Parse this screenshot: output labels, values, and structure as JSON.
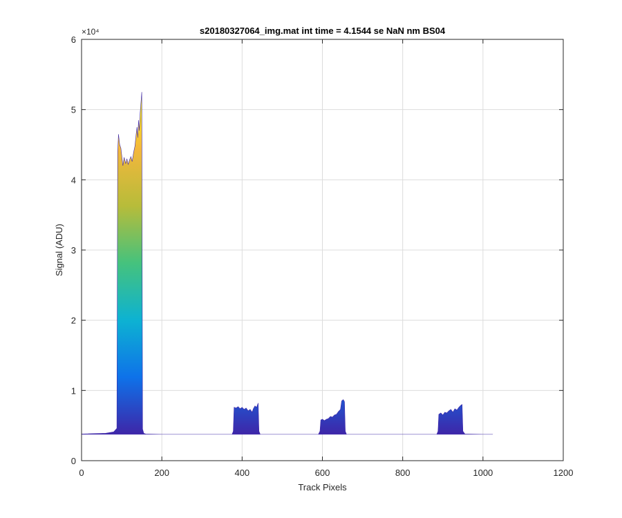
{
  "chart_data": {
    "type": "area",
    "title": "s20180327064_img.mat int time = 4.1544 se  NaN nm BS04",
    "xlabel": "Track Pixels",
    "ylabel": "Signal (ADU)",
    "y_exponent_label": "×10⁴",
    "xlim": [
      0,
      1200
    ],
    "ylim": [
      0,
      60000
    ],
    "x_ticks": [
      0,
      200,
      400,
      600,
      800,
      1000,
      1200
    ],
    "y_ticks": [
      0,
      10000,
      20000,
      30000,
      40000,
      50000,
      60000
    ],
    "x_tick_labels": [
      "0",
      "200",
      "400",
      "600",
      "800",
      "1000",
      "1200"
    ],
    "y_tick_labels": [
      "0",
      "1",
      "2",
      "3",
      "4",
      "5",
      "6"
    ],
    "grid": true,
    "colormap": [
      "#3e26a8",
      "#0e72e9",
      "#0db2d2",
      "#45c27d",
      "#b7bc3a",
      "#f3b73c",
      "#f9fb0e"
    ],
    "series": [
      {
        "x": [
          0,
          60,
          80,
          88,
          90,
          92,
          95,
          98,
          100,
          103,
          106,
          110,
          113,
          116,
          120,
          123,
          126,
          130,
          133,
          136,
          138,
          140,
          142,
          144,
          146,
          148,
          150,
          152,
          155,
          160,
          200,
          300,
          375,
          378,
          380,
          385,
          390,
          395,
          400,
          405,
          410,
          415,
          420,
          425,
          428,
          432,
          436,
          440,
          442,
          445,
          450,
          500,
          590,
          594,
          596,
          600,
          605,
          610,
          615,
          620,
          625,
          630,
          635,
          640,
          645,
          648,
          652,
          655,
          657,
          660,
          700,
          800,
          885,
          888,
          890,
          895,
          900,
          905,
          910,
          915,
          920,
          925,
          930,
          935,
          940,
          945,
          948,
          950,
          955,
          1000,
          1024
        ],
        "y": [
          3800,
          3900,
          4100,
          4600,
          44000,
          46500,
          45000,
          44500,
          43500,
          42000,
          43200,
          42300,
          43000,
          42200,
          42900,
          43300,
          42600,
          44000,
          44800,
          46500,
          47500,
          46000,
          48500,
          47000,
          49500,
          51000,
          52500,
          4500,
          3900,
          3800,
          3750,
          3750,
          3750,
          4200,
          7600,
          7500,
          7700,
          7400,
          7600,
          7300,
          7500,
          7100,
          7300,
          6900,
          7400,
          7800,
          7600,
          8200,
          4200,
          3750,
          3750,
          3750,
          3750,
          4200,
          5800,
          5900,
          5700,
          5900,
          6000,
          6300,
          6200,
          6500,
          6600,
          7000,
          7300,
          8500,
          8700,
          8400,
          4200,
          3750,
          3750,
          3750,
          3750,
          4200,
          6600,
          6800,
          6500,
          6900,
          6800,
          7100,
          7300,
          6900,
          7400,
          7200,
          7600,
          7900,
          8000,
          4200,
          3800,
          3750,
          3750
        ]
      }
    ]
  }
}
